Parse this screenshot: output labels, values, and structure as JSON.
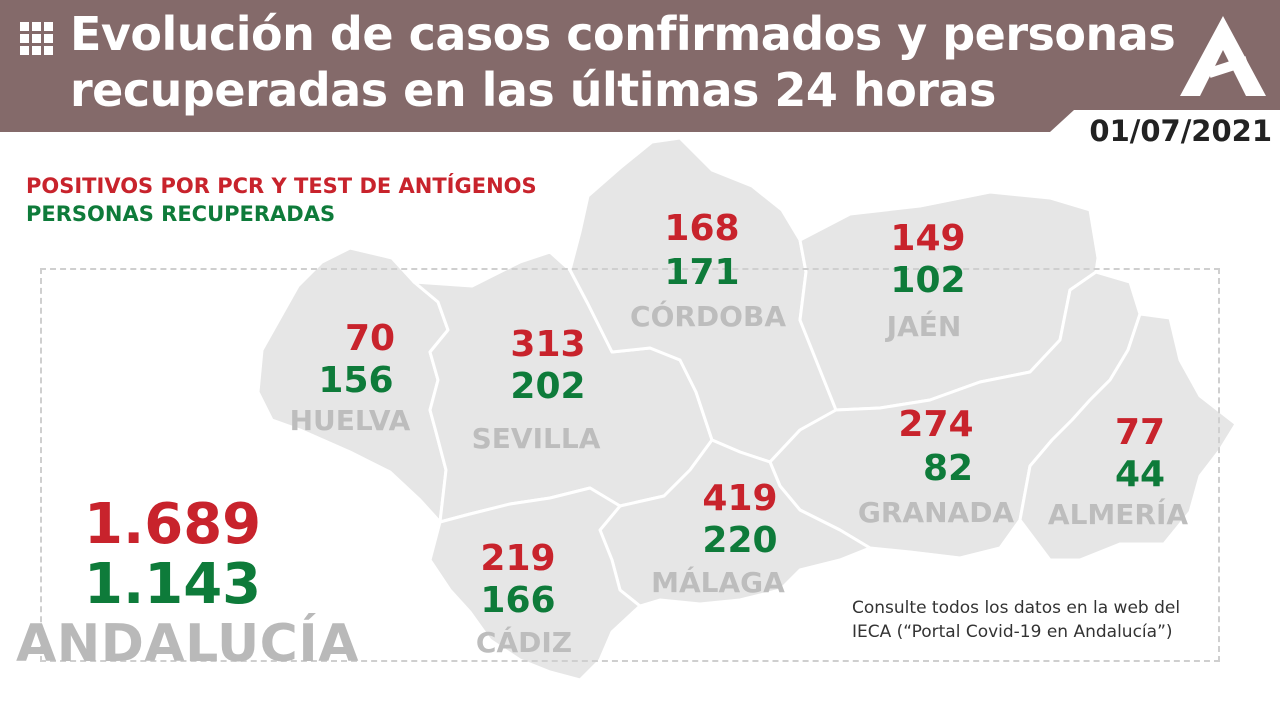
{
  "header": {
    "title_line1": "Evolución de casos confirmados y personas",
    "title_line2": "recuperadas en las últimas 24 horas",
    "date": "01/07/2021",
    "menu_icon": "grid-icon",
    "logo_icon": "junta-andalucia-logo"
  },
  "legend": {
    "positives": "POSITIVOS POR PCR Y TEST DE ANTÍGENOS",
    "recovered": "PERSONAS RECUPERADAS"
  },
  "colors": {
    "header_bg": "#846a6a",
    "positives": "#c8232c",
    "recovered": "#0e7b3a",
    "map_fill": "#e6e6e6",
    "province_label": "#bdbdbd"
  },
  "provinces": [
    {
      "name": "HUELVA",
      "positives": "70",
      "recovered": "156"
    },
    {
      "name": "SEVILLA",
      "positives": "313",
      "recovered": "202"
    },
    {
      "name": "CÓRDOBA",
      "positives": "168",
      "recovered": "171"
    },
    {
      "name": "JAÉN",
      "positives": "149",
      "recovered": "102"
    },
    {
      "name": "GRANADA",
      "positives": "274",
      "recovered": "82"
    },
    {
      "name": "ALMERÍA",
      "positives": "77",
      "recovered": "44"
    },
    {
      "name": "MÁLAGA",
      "positives": "419",
      "recovered": "220"
    },
    {
      "name": "CÁDIZ",
      "positives": "219",
      "recovered": "166"
    }
  ],
  "total": {
    "name": "ANDALUCÍA",
    "positives": "1.689",
    "recovered": "1.143"
  },
  "note": {
    "line1": "Consulte todos los datos en la web del",
    "line2": "IECA (“Portal Covid-19 en Andalucía”)"
  }
}
